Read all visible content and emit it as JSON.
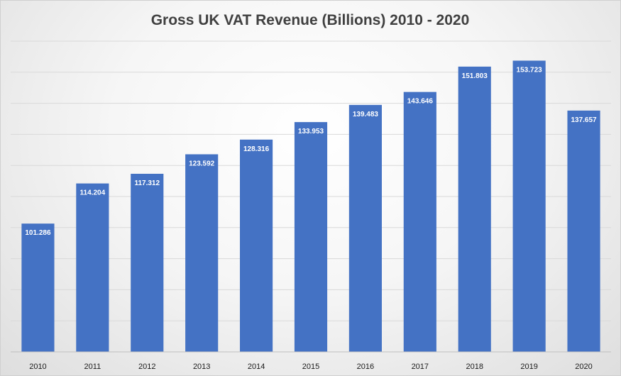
{
  "chart_data": {
    "type": "bar",
    "title": "Gross UK VAT Revenue (Billions) 2010 - 2020",
    "xlabel": "",
    "ylabel": "",
    "categories": [
      "2010",
      "2011",
      "2012",
      "2013",
      "2014",
      "2015",
      "2016",
      "2017",
      "2018",
      "2019",
      "2020"
    ],
    "values": [
      101.286,
      114.204,
      117.312,
      123.592,
      128.316,
      133.953,
      139.483,
      143.646,
      151.803,
      153.723,
      137.657
    ],
    "data_labels": [
      "101.286",
      "114.204",
      "117.312",
      "123.592",
      "128.316",
      "133.953",
      "139.483",
      "143.646",
      "151.803",
      "153.723",
      "137.657"
    ],
    "ylim": [
      60,
      160
    ],
    "grid": true,
    "y_tick_labels_shown": false,
    "legend": "none",
    "colors": {
      "bar": "#4472C4",
      "grid": "#d9d9d9",
      "axis": "#bfbfbf",
      "title": "#404040"
    }
  }
}
